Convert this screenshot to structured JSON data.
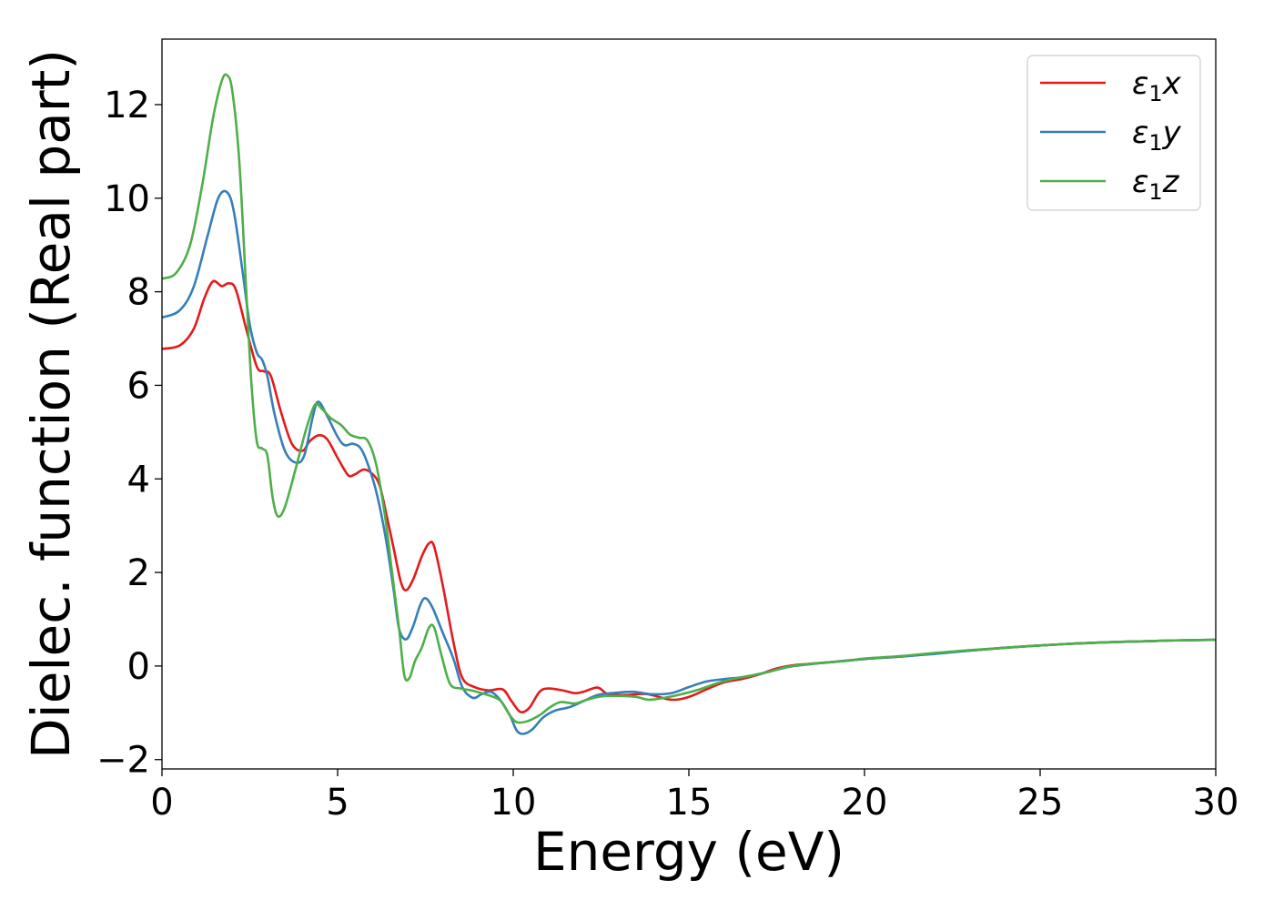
{
  "chart_data": {
    "type": "line",
    "xlabel": "Energy (eV)",
    "ylabel": "Dielec. function (Real part)",
    "xlim": [
      0,
      30
    ],
    "ylim": [
      -2.2,
      13.4
    ],
    "x_ticks": [
      "0",
      "5",
      "10",
      "15",
      "20",
      "25",
      "30"
    ],
    "y_ticks": [
      "−2",
      "0",
      "2",
      "4",
      "6",
      "8",
      "10",
      "12"
    ],
    "x_tick_values": [
      0,
      5,
      10,
      15,
      20,
      25,
      30
    ],
    "y_tick_values": [
      -2,
      0,
      2,
      4,
      6,
      8,
      10,
      12
    ],
    "grid": false,
    "legend_position": "top-right",
    "series": [
      {
        "name": "ε₁x",
        "legend": {
          "base": "ε",
          "sub": "1",
          "axis": "x"
        },
        "color": "#e41a1c",
        "points": [
          [
            0,
            6.78
          ],
          [
            0.5,
            6.85
          ],
          [
            0.9,
            7.2
          ],
          [
            1.2,
            7.85
          ],
          [
            1.45,
            8.22
          ],
          [
            1.7,
            8.12
          ],
          [
            1.9,
            8.18
          ],
          [
            2.1,
            8.05
          ],
          [
            2.4,
            7.2
          ],
          [
            2.7,
            6.4
          ],
          [
            2.9,
            6.3
          ],
          [
            3.1,
            6.2
          ],
          [
            3.4,
            5.4
          ],
          [
            3.7,
            4.75
          ],
          [
            4.0,
            4.6
          ],
          [
            4.2,
            4.8
          ],
          [
            4.45,
            4.93
          ],
          [
            4.7,
            4.85
          ],
          [
            5.0,
            4.45
          ],
          [
            5.3,
            4.08
          ],
          [
            5.5,
            4.1
          ],
          [
            5.75,
            4.2
          ],
          [
            6.0,
            4.1
          ],
          [
            6.2,
            3.85
          ],
          [
            6.4,
            3.2
          ],
          [
            6.6,
            2.5
          ],
          [
            6.8,
            1.8
          ],
          [
            6.95,
            1.62
          ],
          [
            7.15,
            1.85
          ],
          [
            7.4,
            2.35
          ],
          [
            7.6,
            2.62
          ],
          [
            7.75,
            2.55
          ],
          [
            8.0,
            1.7
          ],
          [
            8.3,
            0.5
          ],
          [
            8.55,
            -0.25
          ],
          [
            8.9,
            -0.45
          ],
          [
            9.3,
            -0.52
          ],
          [
            9.7,
            -0.5
          ],
          [
            9.95,
            -0.75
          ],
          [
            10.2,
            -0.98
          ],
          [
            10.45,
            -0.9
          ],
          [
            10.75,
            -0.55
          ],
          [
            11.0,
            -0.48
          ],
          [
            11.4,
            -0.52
          ],
          [
            11.75,
            -0.58
          ],
          [
            12.0,
            -0.55
          ],
          [
            12.4,
            -0.46
          ],
          [
            12.7,
            -0.6
          ],
          [
            13.2,
            -0.62
          ],
          [
            13.8,
            -0.6
          ],
          [
            14.5,
            -0.72
          ],
          [
            15.0,
            -0.66
          ],
          [
            15.5,
            -0.5
          ],
          [
            16.0,
            -0.35
          ],
          [
            16.5,
            -0.28
          ],
          [
            17.0,
            -0.18
          ],
          [
            17.5,
            -0.05
          ],
          [
            18.0,
            0.02
          ],
          [
            19.0,
            0.08
          ],
          [
            20.0,
            0.15
          ],
          [
            21.0,
            0.2
          ],
          [
            22.0,
            0.27
          ],
          [
            23.0,
            0.33
          ],
          [
            24.0,
            0.39
          ],
          [
            25.0,
            0.44
          ],
          [
            26.0,
            0.48
          ],
          [
            27.0,
            0.51
          ],
          [
            28.0,
            0.53
          ],
          [
            29.0,
            0.55
          ],
          [
            30.0,
            0.56
          ]
        ]
      },
      {
        "name": "ε₁y",
        "legend": {
          "base": "ε",
          "sub": "1",
          "axis": "y"
        },
        "color": "#377eb8",
        "points": [
          [
            0,
            7.45
          ],
          [
            0.5,
            7.6
          ],
          [
            0.9,
            8.1
          ],
          [
            1.3,
            9.2
          ],
          [
            1.6,
            10.0
          ],
          [
            1.85,
            10.13
          ],
          [
            2.05,
            9.7
          ],
          [
            2.3,
            8.4
          ],
          [
            2.5,
            7.3
          ],
          [
            2.7,
            6.7
          ],
          [
            2.85,
            6.55
          ],
          [
            3.0,
            6.2
          ],
          [
            3.2,
            5.4
          ],
          [
            3.5,
            4.6
          ],
          [
            3.8,
            4.35
          ],
          [
            4.05,
            4.5
          ],
          [
            4.3,
            5.35
          ],
          [
            4.45,
            5.65
          ],
          [
            4.7,
            5.35
          ],
          [
            5.0,
            4.9
          ],
          [
            5.2,
            4.72
          ],
          [
            5.45,
            4.75
          ],
          [
            5.7,
            4.6
          ],
          [
            6.0,
            4.0
          ],
          [
            6.2,
            3.4
          ],
          [
            6.4,
            2.6
          ],
          [
            6.6,
            1.6
          ],
          [
            6.75,
            0.8
          ],
          [
            6.95,
            0.57
          ],
          [
            7.15,
            0.85
          ],
          [
            7.35,
            1.3
          ],
          [
            7.5,
            1.45
          ],
          [
            7.7,
            1.25
          ],
          [
            8.0,
            0.7
          ],
          [
            8.3,
            0.15
          ],
          [
            8.55,
            -0.45
          ],
          [
            8.85,
            -0.68
          ],
          [
            9.1,
            -0.6
          ],
          [
            9.35,
            -0.55
          ],
          [
            9.6,
            -0.7
          ],
          [
            9.9,
            -1.05
          ],
          [
            10.1,
            -1.38
          ],
          [
            10.3,
            -1.45
          ],
          [
            10.55,
            -1.35
          ],
          [
            10.85,
            -1.1
          ],
          [
            11.2,
            -0.95
          ],
          [
            11.6,
            -0.88
          ],
          [
            12.0,
            -0.75
          ],
          [
            12.4,
            -0.62
          ],
          [
            12.8,
            -0.58
          ],
          [
            13.4,
            -0.55
          ],
          [
            13.9,
            -0.6
          ],
          [
            14.5,
            -0.58
          ],
          [
            15.0,
            -0.45
          ],
          [
            15.5,
            -0.33
          ],
          [
            16.0,
            -0.28
          ],
          [
            16.5,
            -0.24
          ],
          [
            17.0,
            -0.17
          ],
          [
            17.5,
            -0.08
          ],
          [
            18.0,
            0.0
          ],
          [
            19.0,
            0.08
          ],
          [
            20.0,
            0.15
          ],
          [
            21.0,
            0.2
          ],
          [
            22.0,
            0.26
          ],
          [
            23.0,
            0.33
          ],
          [
            24.0,
            0.39
          ],
          [
            25.0,
            0.44
          ],
          [
            26.0,
            0.48
          ],
          [
            27.0,
            0.51
          ],
          [
            28.0,
            0.53
          ],
          [
            29.0,
            0.55
          ],
          [
            30.0,
            0.56
          ]
        ]
      },
      {
        "name": "ε₁z",
        "legend": {
          "base": "ε",
          "sub": "1",
          "axis": "z"
        },
        "color": "#4daf4a",
        "points": [
          [
            0,
            8.28
          ],
          [
            0.4,
            8.4
          ],
          [
            0.8,
            9.0
          ],
          [
            1.15,
            10.3
          ],
          [
            1.45,
            11.7
          ],
          [
            1.7,
            12.5
          ],
          [
            1.85,
            12.63
          ],
          [
            2.0,
            12.3
          ],
          [
            2.2,
            10.8
          ],
          [
            2.4,
            8.0
          ],
          [
            2.55,
            6.0
          ],
          [
            2.7,
            4.8
          ],
          [
            2.85,
            4.65
          ],
          [
            3.0,
            4.5
          ],
          [
            3.15,
            3.6
          ],
          [
            3.3,
            3.2
          ],
          [
            3.5,
            3.4
          ],
          [
            3.8,
            4.2
          ],
          [
            4.1,
            5.05
          ],
          [
            4.35,
            5.58
          ],
          [
            4.55,
            5.5
          ],
          [
            4.8,
            5.3
          ],
          [
            5.1,
            5.15
          ],
          [
            5.35,
            4.95
          ],
          [
            5.6,
            4.88
          ],
          [
            5.85,
            4.82
          ],
          [
            6.1,
            4.3
          ],
          [
            6.35,
            3.2
          ],
          [
            6.55,
            2.0
          ],
          [
            6.75,
            0.8
          ],
          [
            6.9,
            -0.2
          ],
          [
            7.05,
            -0.25
          ],
          [
            7.2,
            0.1
          ],
          [
            7.4,
            0.4
          ],
          [
            7.6,
            0.82
          ],
          [
            7.75,
            0.82
          ],
          [
            7.95,
            0.25
          ],
          [
            8.2,
            -0.38
          ],
          [
            8.5,
            -0.48
          ],
          [
            8.8,
            -0.52
          ],
          [
            9.1,
            -0.58
          ],
          [
            9.4,
            -0.65
          ],
          [
            9.65,
            -0.75
          ],
          [
            9.9,
            -1.05
          ],
          [
            10.1,
            -1.2
          ],
          [
            10.4,
            -1.18
          ],
          [
            10.75,
            -1.05
          ],
          [
            11.05,
            -0.88
          ],
          [
            11.35,
            -0.77
          ],
          [
            11.75,
            -0.8
          ],
          [
            12.1,
            -0.72
          ],
          [
            12.5,
            -0.65
          ],
          [
            13.0,
            -0.64
          ],
          [
            13.5,
            -0.66
          ],
          [
            13.85,
            -0.72
          ],
          [
            14.3,
            -0.68
          ],
          [
            14.8,
            -0.6
          ],
          [
            15.3,
            -0.5
          ],
          [
            15.8,
            -0.37
          ],
          [
            16.3,
            -0.27
          ],
          [
            16.8,
            -0.2
          ],
          [
            17.3,
            -0.12
          ],
          [
            17.8,
            -0.02
          ],
          [
            18.5,
            0.05
          ],
          [
            19.5,
            0.11
          ],
          [
            20.0,
            0.16
          ],
          [
            21.0,
            0.21
          ],
          [
            22.0,
            0.28
          ],
          [
            23.0,
            0.34
          ],
          [
            24.0,
            0.39
          ],
          [
            25.0,
            0.44
          ],
          [
            26.0,
            0.48
          ],
          [
            27.0,
            0.51
          ],
          [
            28.0,
            0.53
          ],
          [
            29.0,
            0.55
          ],
          [
            30.0,
            0.56
          ]
        ]
      }
    ]
  }
}
